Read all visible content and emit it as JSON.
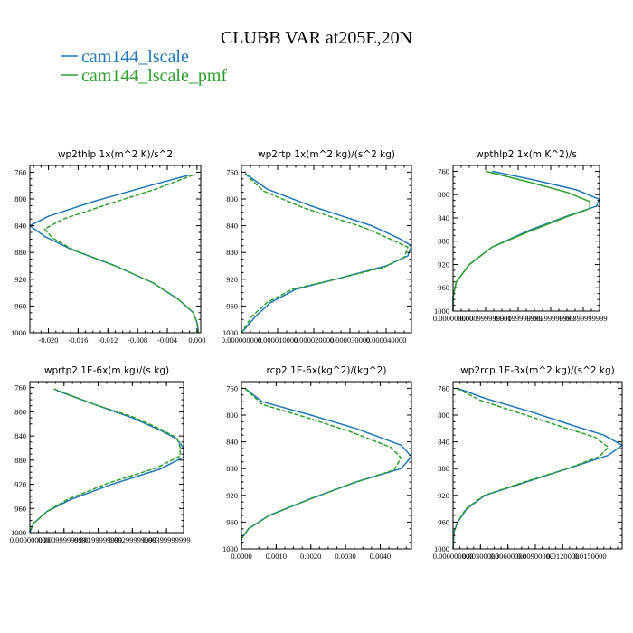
{
  "figure": {
    "title": "CLUBB VAR at205E,20N",
    "legend": [
      {
        "label": "cam144_lscale",
        "color": "#1f77b4"
      },
      {
        "label": "cam144_lscale_pmf",
        "color": "#2ca02c"
      }
    ]
  },
  "chart_data": [
    {
      "type": "line",
      "title": "wp2thlp  1x(m^2 K)/s^2",
      "ylim": [
        1000,
        750
      ],
      "yticks": [
        760,
        800,
        840,
        880,
        920,
        960,
        1000
      ],
      "xlim": [
        -0.0225,
        0.0005
      ],
      "xticks": [
        -0.02,
        -0.016,
        -0.012,
        -0.008,
        -0.004,
        0.0
      ],
      "xtick_labels": [
        "-0.020",
        "-0.016",
        "-0.012",
        "-0.008",
        "-0.004",
        "0.000"
      ],
      "grid": false,
      "series": [
        {
          "name": "cam144_lscale",
          "color": "#1f77b4",
          "dash": "solid",
          "y": [
            764,
            782,
            804,
            826,
            840,
            856,
            875,
            900,
            925,
            950,
            970,
            985,
            1000
          ],
          "x": [
            -0.001,
            -0.007,
            -0.014,
            -0.02,
            -0.0225,
            -0.0205,
            -0.017,
            -0.011,
            -0.006,
            -0.0025,
            -0.0005,
            0.0,
            0.0002
          ]
        },
        {
          "name": "cam144_lscale_pmf",
          "color": "#2ca02c",
          "dash": "dashed",
          "y": [
            764,
            785,
            808,
            830,
            845,
            858,
            877,
            900,
            925,
            950,
            970,
            985,
            1000
          ],
          "x": [
            -0.0005,
            -0.0055,
            -0.012,
            -0.018,
            -0.0205,
            -0.0195,
            -0.0165,
            -0.011,
            -0.006,
            -0.0025,
            -0.0005,
            0.0,
            0.0002
          ]
        }
      ]
    },
    {
      "type": "line",
      "title": "wp2rtp  1x(m^2 kg)/(s^2 kg)",
      "ylim": [
        1000,
        750
      ],
      "yticks": [
        760,
        800,
        840,
        880,
        920,
        960,
        1000
      ],
      "xlim": [
        0.0,
        4.7e-05
      ],
      "xticks": [
        0.0,
        1e-05,
        2e-05,
        3e-05,
        4e-05
      ],
      "xtick_labels": [
        "0.000000000",
        "0.000010000",
        "0.000020000",
        "0.000030000",
        "0.000040000"
      ],
      "grid": false,
      "series": [
        {
          "name": "cam144_lscale",
          "color": "#1f77b4",
          "dash": "solid",
          "y": [
            762,
            785,
            810,
            840,
            860,
            870,
            885,
            900,
            920,
            935,
            955,
            975,
            1000
          ],
          "x": [
            1e-06,
            7e-06,
            1.9e-05,
            3.6e-05,
            4.4e-05,
            4.7e-05,
            4.6e-05,
            4e-05,
            2.6e-05,
            1.5e-05,
            8e-06,
            4e-06,
            0.0
          ]
        },
        {
          "name": "cam144_lscale_pmf",
          "color": "#2ca02c",
          "dash": "dashed",
          "y": [
            762,
            788,
            813,
            843,
            862,
            872,
            887,
            902,
            920,
            935,
            955,
            975,
            1000
          ],
          "x": [
            1e-06,
            6e-06,
            1.7e-05,
            3.4e-05,
            4.2e-05,
            4.6e-05,
            4.5e-05,
            3.95e-05,
            2.6e-05,
            1.4e-05,
            7e-06,
            3e-06,
            0.0
          ]
        }
      ]
    },
    {
      "type": "line",
      "title": "wpthlp2  1x(m K^2)/s",
      "ylim": [
        1000,
        750
      ],
      "yticks": [
        760,
        800,
        840,
        880,
        920,
        960,
        1000
      ],
      "xlim": [
        0.0,
        0.0045
      ],
      "xticks": [
        0.0,
        0.00099999999,
        0.00199999999,
        0.00299999999,
        0.00399999999
      ],
      "xtick_labels": [
        "0.000000000",
        "0.000999999990",
        "0.00199999999",
        "0.00299999999",
        "0.00399999999"
      ],
      "grid": false,
      "series": [
        {
          "name": "cam144_lscale",
          "color": "#1f77b4",
          "dash": "solid",
          "y": [
            760,
            775,
            792,
            808,
            820,
            835,
            860,
            890,
            920,
            950,
            975,
            1000
          ],
          "x": [
            0.0012,
            0.0025,
            0.0038,
            0.0045,
            0.0044,
            0.0036,
            0.0024,
            0.0012,
            0.0005,
            0.0001,
            0.0,
            0.0
          ]
        },
        {
          "name": "cam144_lscale_pmf",
          "color": "#2ca02c",
          "dash": "solid",
          "y": [
            760,
            778,
            796,
            812,
            824,
            838,
            862,
            890,
            920,
            950,
            975,
            1000
          ],
          "x": [
            0.001,
            0.0023,
            0.0035,
            0.0042,
            0.0042,
            0.0035,
            0.0024,
            0.0012,
            0.0005,
            0.0001,
            0.0,
            0.0
          ]
        }
      ]
    },
    {
      "type": "line",
      "title": "wprtp2  1E-6x(m kg)/(s kg)",
      "ylim": [
        1000,
        750
      ],
      "yticks": [
        760,
        800,
        840,
        880,
        920,
        960,
        1000
      ],
      "xlim": [
        0.0,
        0.0045
      ],
      "xticks": [
        0.0,
        0.00099999999,
        0.00199999999,
        0.00299999999,
        0.00399999999
      ],
      "xtick_labels": [
        "0.000000000",
        "0.000999999990",
        "0.00199999999",
        "0.00299999999",
        "0.00399999999"
      ],
      "grid": false,
      "series": [
        {
          "name": "cam144_lscale",
          "color": "#1f77b4",
          "dash": "solid",
          "y": [
            765,
            790,
            810,
            830,
            845,
            860,
            875,
            895,
            920,
            945,
            965,
            985,
            1000
          ],
          "x": [
            0.0008,
            0.002,
            0.003,
            0.0038,
            0.0043,
            0.0045,
            0.0045,
            0.0038,
            0.0024,
            0.0012,
            0.0005,
            0.0001,
            0.0
          ]
        },
        {
          "name": "cam144_lscale_pmf",
          "color": "#2ca02c",
          "dash": "dashed",
          "y": [
            762,
            788,
            808,
            828,
            843,
            858,
            873,
            893,
            918,
            945,
            965,
            985,
            1000
          ],
          "x": [
            0.0007,
            0.0019,
            0.003,
            0.0038,
            0.0043,
            0.0044,
            0.0044,
            0.0037,
            0.0023,
            0.0011,
            0.0005,
            0.0001,
            0.0
          ]
        }
      ]
    },
    {
      "type": "line",
      "title": "rcp2  1E-6x(kg^2)/(kg^2)",
      "ylim": [
        1000,
        750
      ],
      "yticks": [
        760,
        800,
        840,
        880,
        920,
        960,
        1000
      ],
      "xlim": [
        0.0,
        0.0049
      ],
      "xticks": [
        0.0,
        0.001,
        0.002,
        0.003,
        0.004
      ],
      "xtick_labels": [
        "0.0000",
        "0.0010",
        "0.0020",
        "0.0030",
        "0.0040"
      ],
      "grid": false,
      "series": [
        {
          "name": "cam144_lscale",
          "color": "#1f77b4",
          "dash": "solid",
          "y": [
            760,
            780,
            800,
            820,
            845,
            862,
            880,
            900,
            925,
            950,
            970,
            985,
            1000
          ],
          "x": [
            0.0001,
            0.0006,
            0.002,
            0.0033,
            0.0046,
            0.0049,
            0.0046,
            0.0033,
            0.002,
            0.0008,
            0.0002,
            0.0,
            0.0
          ]
        },
        {
          "name": "cam144_lscale_pmf",
          "color": "#2ca02c",
          "dash": "dashed",
          "y": [
            760,
            784,
            804,
            824,
            848,
            864,
            882,
            902,
            925,
            950,
            970,
            985,
            1000
          ],
          "x": [
            0.0001,
            0.0006,
            0.0019,
            0.0031,
            0.0043,
            0.0046,
            0.0044,
            0.0032,
            0.002,
            0.0008,
            0.0002,
            0.0,
            0.0
          ]
        }
      ]
    },
    {
      "type": "line",
      "title": "wp2rcp  1E-3x(m^2 kg)/(s^2 kg)",
      "ylim": [
        1000,
        750
      ],
      "yticks": [
        760,
        800,
        840,
        880,
        920,
        960,
        1000
      ],
      "xlim": [
        0.0,
        0.0185
      ],
      "xticks": [
        0.0,
        0.003,
        0.006,
        0.009,
        0.012,
        0.015
      ],
      "xtick_labels": [
        "0.000000000",
        "0.00300000",
        "0.00600000",
        "0.00900000",
        "0.0120000",
        "0.0150000"
      ],
      "grid": false,
      "series": [
        {
          "name": "cam144_lscale",
          "color": "#1f77b4",
          "dash": "solid",
          "y": [
            760,
            775,
            795,
            815,
            830,
            845,
            860,
            878,
            900,
            920,
            940,
            960,
            975,
            1000
          ],
          "x": [
            0.0005,
            0.0035,
            0.0085,
            0.013,
            0.0165,
            0.0185,
            0.017,
            0.013,
            0.008,
            0.0035,
            0.0015,
            0.0005,
            0.0001,
            0.0
          ]
        },
        {
          "name": "cam144_lscale_pmf",
          "color": "#2ca02c",
          "dash": "dashed",
          "y": [
            760,
            778,
            798,
            818,
            833,
            848,
            862,
            880,
            900,
            920,
            940,
            960,
            975,
            1000
          ],
          "x": [
            0.0004,
            0.003,
            0.0075,
            0.012,
            0.0155,
            0.017,
            0.016,
            0.0125,
            0.0078,
            0.0034,
            0.0014,
            0.0005,
            0.0001,
            0.0
          ]
        }
      ]
    }
  ]
}
